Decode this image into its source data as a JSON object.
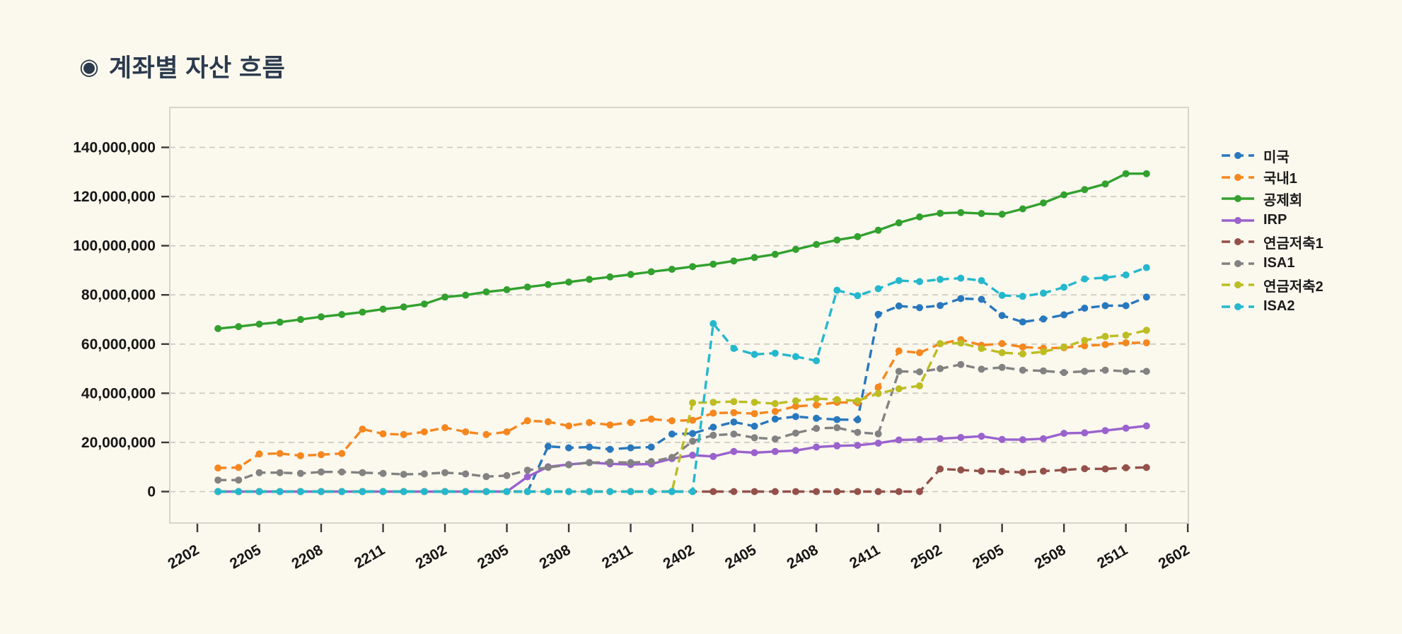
{
  "page": {
    "title_icon": "◉",
    "title": "계좌별 자산 흐름"
  },
  "colors": {
    "background": "#fbf8ee",
    "title_text": "#2b3a4d",
    "axis_border": "#d7d5ca",
    "gridline": "#c9c8c0",
    "tick_mark": "#3a3a3a",
    "tick_label": "#161616"
  },
  "chart_data": {
    "type": "line",
    "title": "계좌별 자산 흐름",
    "xlabel": "",
    "ylabel": "",
    "grid": true,
    "legend_position": "right",
    "y_ticks": [
      0,
      20000000,
      40000000,
      60000000,
      80000000,
      100000000,
      120000000,
      140000000
    ],
    "y_tick_labels": [
      "0",
      "20,000,000",
      "40,000,000",
      "60,000,000",
      "80,000,000",
      "100,000,000",
      "120,000,000",
      "140,000,000"
    ],
    "x_tick_labels": [
      "2202",
      "2205",
      "2208",
      "2211",
      "2302",
      "2305",
      "2308",
      "2311",
      "2402",
      "2405",
      "2408",
      "2411",
      "2502",
      "2505",
      "2508",
      "2511",
      "2602"
    ],
    "categories": [
      "2203",
      "2204",
      "2205",
      "2206",
      "2207",
      "2208",
      "2209",
      "2210",
      "2211",
      "2212",
      "2301",
      "2302",
      "2303",
      "2304",
      "2305",
      "2306",
      "2307",
      "2308",
      "2309",
      "2310",
      "2311",
      "2312",
      "2401",
      "2402",
      "2403",
      "2404",
      "2405",
      "2406",
      "2407",
      "2408",
      "2409",
      "2410",
      "2411",
      "2412",
      "2501",
      "2502",
      "2503",
      "2504",
      "2505",
      "2506",
      "2507",
      "2508",
      "2509",
      "2510",
      "2511",
      "2512"
    ],
    "series": [
      {
        "name": "미국",
        "color": "#2878be",
        "dash": true,
        "values": [
          0,
          0,
          0,
          0,
          0,
          0,
          0,
          0,
          0,
          0,
          0,
          0,
          0,
          0,
          0,
          0,
          18400000,
          17800000,
          18100000,
          17200000,
          17800000,
          18100000,
          23400000,
          23600000,
          26200000,
          28300000,
          26600000,
          29500000,
          30500000,
          29800000,
          29300000,
          29200000,
          72100000,
          75500000,
          74800000,
          75700000,
          78500000,
          78200000,
          71600000,
          69000000,
          70200000,
          71900000,
          74600000,
          75600000,
          75600000,
          79100000
        ]
      },
      {
        "name": "국내1",
        "color": "#f5871f",
        "dash": true,
        "values": [
          9600000,
          9800000,
          15300000,
          15500000,
          14600000,
          15000000,
          15500000,
          25400000,
          23500000,
          23200000,
          24300000,
          26000000,
          24300000,
          23200000,
          24300000,
          28800000,
          28400000,
          26700000,
          28100000,
          27100000,
          28100000,
          29500000,
          28800000,
          29000000,
          31900000,
          32100000,
          31700000,
          32600000,
          34700000,
          35200000,
          36300000,
          36100000,
          42500000,
          57200000,
          56500000,
          60100000,
          61800000,
          59500000,
          60200000,
          58800000,
          58300000,
          58500000,
          59300000,
          59800000,
          60500000,
          60500000
        ]
      },
      {
        "name": "공제회",
        "color": "#32a12e",
        "dash": false,
        "values": [
          66300000,
          67100000,
          68100000,
          68900000,
          70000000,
          71100000,
          72000000,
          73000000,
          74200000,
          75100000,
          76300000,
          79100000,
          79900000,
          81200000,
          82100000,
          83200000,
          84200000,
          85200000,
          86300000,
          87300000,
          88300000,
          89400000,
          90400000,
          91500000,
          92500000,
          93800000,
          95200000,
          96500000,
          98500000,
          100500000,
          102300000,
          103700000,
          106300000,
          109300000,
          111700000,
          113200000,
          113500000,
          113100000,
          112800000,
          115000000,
          117400000,
          120700000,
          122800000,
          125100000,
          129300000,
          129300000
        ]
      },
      {
        "name": "IRP",
        "color": "#9a62cd",
        "dash": false,
        "values": [
          0,
          0,
          0,
          0,
          0,
          0,
          0,
          0,
          0,
          0,
          0,
          0,
          0,
          0,
          0,
          6000000,
          10100000,
          11000000,
          11800000,
          11300000,
          11000000,
          11200000,
          13400000,
          14800000,
          14300000,
          16300000,
          15800000,
          16300000,
          16700000,
          18100000,
          18600000,
          18800000,
          19700000,
          21000000,
          21200000,
          21500000,
          22000000,
          22500000,
          21200000,
          21100000,
          21500000,
          23700000,
          23900000,
          24800000,
          25800000,
          26700000
        ]
      },
      {
        "name": "연금저축1",
        "color": "#935149",
        "dash": true,
        "values": [
          0,
          0,
          0,
          0,
          0,
          0,
          0,
          0,
          0,
          0,
          0,
          0,
          0,
          0,
          0,
          0,
          0,
          0,
          0,
          0,
          0,
          0,
          0,
          0,
          0,
          0,
          0,
          0,
          0,
          0,
          0,
          0,
          0,
          0,
          0,
          9200000,
          8800000,
          8300000,
          8200000,
          7800000,
          8300000,
          8800000,
          9300000,
          9200000,
          9700000,
          9800000
        ]
      },
      {
        "name": "ISA1",
        "color": "#828282",
        "dash": true,
        "values": [
          4700000,
          4700000,
          7700000,
          7700000,
          7400000,
          8000000,
          8000000,
          7700000,
          7400000,
          7000000,
          7200000,
          7700000,
          7200000,
          6100000,
          6500000,
          8700000,
          9800000,
          10900000,
          11800000,
          12000000,
          11800000,
          12200000,
          13900000,
          20500000,
          22900000,
          23400000,
          21900000,
          21400000,
          23800000,
          25700000,
          26000000,
          24100000,
          23500000,
          48900000,
          48700000,
          50000000,
          51700000,
          49800000,
          50500000,
          49400000,
          49100000,
          48400000,
          48900000,
          49400000,
          48900000,
          48900000
        ]
      },
      {
        "name": "연금저축2",
        "color": "#bcbd22",
        "dash": true,
        "values": [
          0,
          0,
          0,
          0,
          0,
          0,
          0,
          0,
          0,
          0,
          0,
          0,
          0,
          0,
          0,
          0,
          0,
          0,
          0,
          0,
          0,
          0,
          0,
          36100000,
          36300000,
          36600000,
          36300000,
          35800000,
          36900000,
          37800000,
          37400000,
          36900000,
          39900000,
          41800000,
          43000000,
          60200000,
          60400000,
          58200000,
          56500000,
          56000000,
          56900000,
          58800000,
          61500000,
          63100000,
          63600000,
          65600000
        ]
      },
      {
        "name": "ISA2",
        "color": "#24b8cd",
        "dash": true,
        "values": [
          0,
          0,
          0,
          0,
          0,
          0,
          0,
          0,
          0,
          0,
          0,
          0,
          0,
          0,
          0,
          0,
          0,
          0,
          0,
          0,
          0,
          0,
          0,
          0,
          68300000,
          58200000,
          55800000,
          56300000,
          54900000,
          53200000,
          81900000,
          79700000,
          82500000,
          85800000,
          85400000,
          86300000,
          86800000,
          85800000,
          79800000,
          79400000,
          80700000,
          83100000,
          86500000,
          87000000,
          88100000,
          91100000
        ]
      }
    ]
  }
}
